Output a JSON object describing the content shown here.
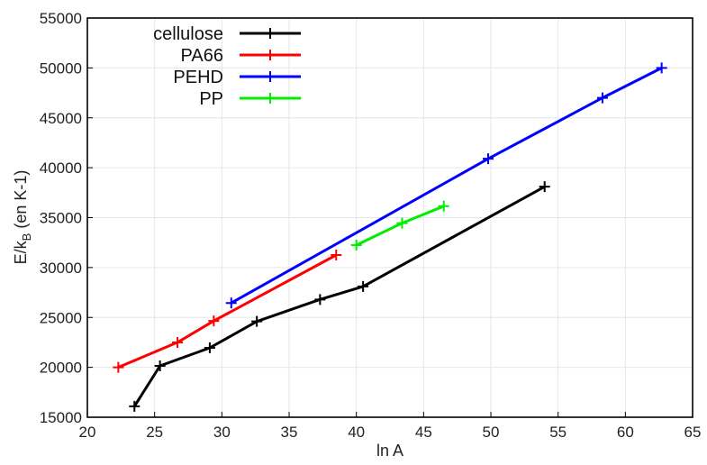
{
  "chart_data": {
    "type": "line",
    "xlabel": "ln A",
    "ylabel_main": "E/k",
    "ylabel_sub": "B",
    "ylabel_rest": " (en K-1)",
    "xlim": [
      20,
      65
    ],
    "ylim": [
      15000,
      55000
    ],
    "xticks": [
      20,
      25,
      30,
      35,
      40,
      45,
      50,
      55,
      60,
      65
    ],
    "yticks": [
      15000,
      20000,
      25000,
      30000,
      35000,
      40000,
      45000,
      50000,
      55000
    ],
    "grid": true,
    "legend_position": "top-left",
    "series": [
      {
        "name": "cellulose",
        "color": "#000000",
        "points": [
          [
            23.5,
            16100
          ],
          [
            25.4,
            20150
          ],
          [
            29.1,
            21950
          ],
          [
            32.6,
            24600
          ],
          [
            37.3,
            26800
          ],
          [
            40.5,
            28100
          ],
          [
            54.0,
            38100
          ]
        ]
      },
      {
        "name": "PA66",
        "color": "#ff0000",
        "points": [
          [
            22.3,
            20000
          ],
          [
            26.7,
            22500
          ],
          [
            29.4,
            24650
          ],
          [
            38.5,
            31250
          ]
        ]
      },
      {
        "name": "PEHD",
        "color": "#0000ff",
        "points": [
          [
            30.7,
            26450
          ],
          [
            49.8,
            40900
          ],
          [
            58.3,
            47000
          ],
          [
            62.7,
            50000
          ]
        ]
      },
      {
        "name": "PP",
        "color": "#00ee00",
        "points": [
          [
            40.0,
            32250
          ],
          [
            43.4,
            34450
          ],
          [
            46.5,
            36150
          ]
        ]
      }
    ]
  }
}
